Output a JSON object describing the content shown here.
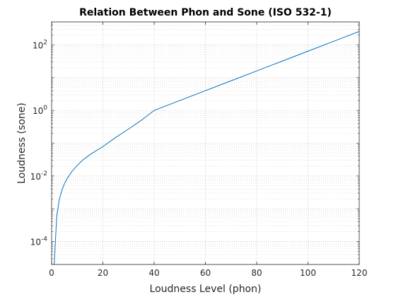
{
  "chart_data": {
    "type": "line",
    "title": "Relation Between Phon and Sone (ISO 532-1)",
    "xlabel": "Loudness Level (phon)",
    "ylabel": "Loudness (sone)",
    "xlim": [
      0,
      120
    ],
    "ylim": [
      2e-05,
      500
    ],
    "yscale": "log",
    "grid": "major and minor, dotted",
    "x_ticks": [
      0,
      20,
      40,
      60,
      80,
      100,
      120
    ],
    "y_ticks": [
      {
        "value": 0.0001,
        "base": "10",
        "exp": "-4"
      },
      {
        "value": 0.01,
        "base": "10",
        "exp": "-2"
      },
      {
        "value": 1,
        "base": "10",
        "exp": "0"
      },
      {
        "value": 100,
        "base": "10",
        "exp": "2"
      }
    ],
    "line_color": "#0072BD",
    "series": [
      {
        "x": [
          1,
          2,
          3,
          4,
          5,
          6,
          8,
          10,
          12,
          15,
          20,
          25,
          30,
          35,
          40,
          50,
          60,
          70,
          80,
          90,
          100,
          110,
          120
        ],
        "y": [
          2e-05,
          0.0006,
          0.0019,
          0.0037,
          0.0058,
          0.0082,
          0.014,
          0.021,
          0.03,
          0.045,
          0.079,
          0.15,
          0.27,
          0.5,
          1,
          2,
          4,
          8,
          16,
          32,
          64,
          128,
          256
        ]
      }
    ]
  }
}
